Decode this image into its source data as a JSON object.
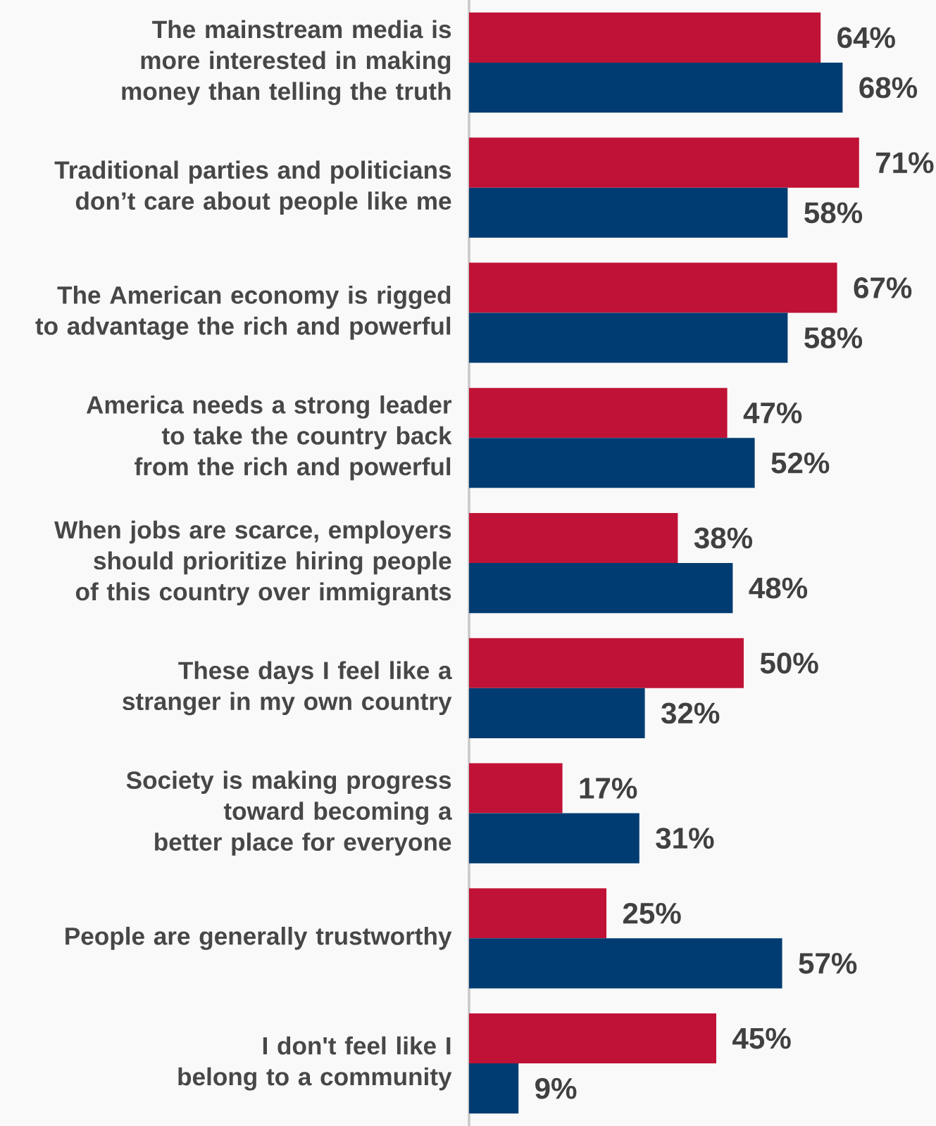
{
  "chart_data": {
    "type": "bar",
    "orientation": "horizontal",
    "categories": [
      "The mainstream media is more interested in making money than telling the truth",
      "Traditional parties and politicians don’t care about people like me",
      "The American economy is rigged to advantage the rich and powerful",
      "America needs a strong leader to take the country back from the rich and powerful",
      "When jobs are scarce, employers should prioritize hiring people of this country over immigrants",
      "These days I feel like a stranger in my own country",
      "Society is making progress toward becoming a better place for everyone",
      "People are generally trustworthy",
      "I don't feel like I belong to a community"
    ],
    "series": [
      {
        "color": "#c01236",
        "values": [
          64,
          71,
          67,
          47,
          38,
          50,
          17,
          25,
          45
        ],
        "value_labels": [
          "64%",
          "71%",
          "67%",
          "47%",
          "38%",
          "50%",
          "17%",
          "25%",
          "45%"
        ]
      },
      {
        "color": "#003c71",
        "values": [
          68,
          58,
          58,
          52,
          48,
          32,
          31,
          57,
          9
        ],
        "value_labels": [
          "68%",
          "58%",
          "58%",
          "52%",
          "48%",
          "32%",
          "31%",
          "57%",
          "9%"
        ]
      }
    ],
    "xlim": [
      0,
      85
    ],
    "tick_labels": "y"
  }
}
